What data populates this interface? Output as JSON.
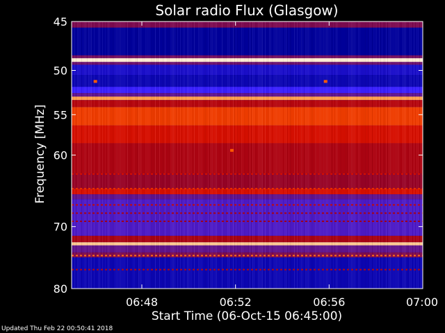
{
  "chart_data": {
    "type": "heatmap",
    "title": "Solar radio Flux (Glasgow)",
    "xlabel": "Start Time (06-Oct-15 06:45:00)",
    "ylabel": "Frequency [MHz]",
    "x_ticks": [
      "06:48",
      "06:52",
      "06:56",
      "07:00"
    ],
    "y_ticks": [
      45,
      50,
      55,
      60,
      70,
      80
    ],
    "xlim": [
      "06:45:00",
      "07:00:00"
    ],
    "ylim": [
      45,
      80
    ],
    "y_scale": "log",
    "grid": false,
    "legend": "none",
    "colormap": [
      "#00001a",
      "#0000a0",
      "#3a20ff",
      "#6a1070",
      "#a00018",
      "#d81000",
      "#ff5a00",
      "#ffb060",
      "#fff6e8"
    ],
    "frequency_bands": [
      {
        "from": 45.0,
        "to": 45.6,
        "level": 0.42
      },
      {
        "from": 45.6,
        "to": 48.4,
        "level": 0.12
      },
      {
        "from": 48.4,
        "to": 48.7,
        "level": 0.4
      },
      {
        "from": 48.7,
        "to": 49.1,
        "level": 0.98
      },
      {
        "from": 49.1,
        "to": 49.4,
        "level": 0.38
      },
      {
        "from": 49.4,
        "to": 50.5,
        "level": 0.18
      },
      {
        "from": 50.5,
        "to": 51.8,
        "level": 0.15
      },
      {
        "from": 51.8,
        "to": 52.5,
        "level": 0.25
      },
      {
        "from": 52.5,
        "to": 52.9,
        "level": 0.35
      },
      {
        "from": 52.9,
        "to": 53.3,
        "level": 0.85
      },
      {
        "from": 53.3,
        "to": 54.1,
        "level": 0.55
      },
      {
        "from": 54.1,
        "to": 56.3,
        "level": 0.7
      },
      {
        "from": 56.3,
        "to": 58.5,
        "level": 0.62
      },
      {
        "from": 58.5,
        "to": 62.5,
        "level": 0.53
      },
      {
        "from": 62.5,
        "to": 64.5,
        "level": 0.48
      },
      {
        "from": 64.5,
        "to": 65.3,
        "level": 0.62
      },
      {
        "from": 65.3,
        "to": 66.0,
        "level": 0.35
      },
      {
        "from": 66.0,
        "to": 71.4,
        "level": 0.3
      },
      {
        "from": 71.4,
        "to": 72.4,
        "level": 0.52
      },
      {
        "from": 72.4,
        "to": 72.9,
        "level": 0.92
      },
      {
        "from": 72.9,
        "to": 74.0,
        "level": 0.35
      },
      {
        "from": 74.0,
        "to": 74.8,
        "level": 0.42
      },
      {
        "from": 74.8,
        "to": 80.0,
        "level": 0.15
      }
    ],
    "dashed_lines": [
      {
        "freq": 62.5,
        "level": 0.62
      },
      {
        "freq": 64.5,
        "level": 0.68
      },
      {
        "freq": 66.8,
        "level": 0.58
      },
      {
        "freq": 68.0,
        "level": 0.52
      },
      {
        "freq": 69.2,
        "level": 0.5
      },
      {
        "freq": 74.5,
        "level": 0.78
      },
      {
        "freq": 76.8,
        "level": 0.55
      }
    ],
    "hot_spots": [
      {
        "time": "06:46:00",
        "freq": 51.2
      },
      {
        "time": "06:55:50",
        "freq": 51.2
      },
      {
        "time": "06:51:50",
        "freq": 59.4
      }
    ]
  },
  "footer": {
    "updated": "Updated Thu Feb 22 00:50:41 2018"
  }
}
